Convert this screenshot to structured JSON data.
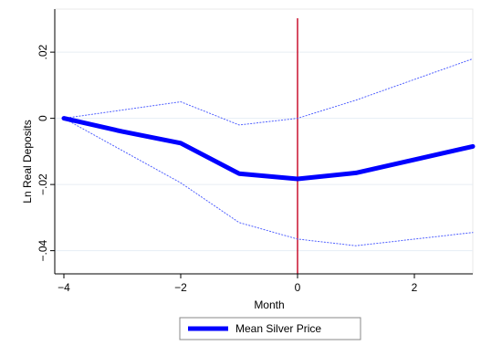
{
  "chart_data": {
    "type": "line",
    "title": "",
    "xlabel": "Month",
    "ylabel": "Ln Real Deposits",
    "xlim": [
      -4,
      3
    ],
    "ylim": [
      -0.047,
      0.033
    ],
    "x_ticks": [
      -4,
      -2,
      0,
      2
    ],
    "x_tick_labels": [
      "−4",
      "−2",
      "0",
      "2"
    ],
    "y_ticks": [
      0.02,
      0,
      -0.02,
      -0.04
    ],
    "y_tick_labels": [
      ".02",
      "0",
      "−.02",
      "−.04"
    ],
    "grid": "horizontal",
    "vline": {
      "x": 0,
      "color": "#c8102e"
    },
    "legend": {
      "position": "bottom-center",
      "entries": [
        "Mean Silver Price"
      ]
    },
    "series": [
      {
        "name": "Mean Silver Price",
        "style": "thick-solid",
        "color": "#0000ff",
        "x": [
          -4,
          -3,
          -2,
          -1,
          0,
          1,
          2,
          3
        ],
        "values": [
          0,
          -0.004,
          -0.0075,
          -0.0167,
          -0.0183,
          -0.0165,
          -0.0125,
          -0.0085
        ]
      },
      {
        "style": "dotted",
        "color": "#5060ff",
        "x": [
          -4,
          -2,
          -1,
          0,
          1,
          3
        ],
        "values": [
          0,
          0.005,
          -0.002,
          0,
          0.0055,
          0.018
        ]
      },
      {
        "style": "dotted",
        "color": "#5060ff",
        "x": [
          -4,
          -2,
          -1,
          0,
          1,
          3
        ],
        "values": [
          0,
          -0.0195,
          -0.0315,
          -0.0365,
          -0.0385,
          -0.0345
        ]
      }
    ]
  }
}
